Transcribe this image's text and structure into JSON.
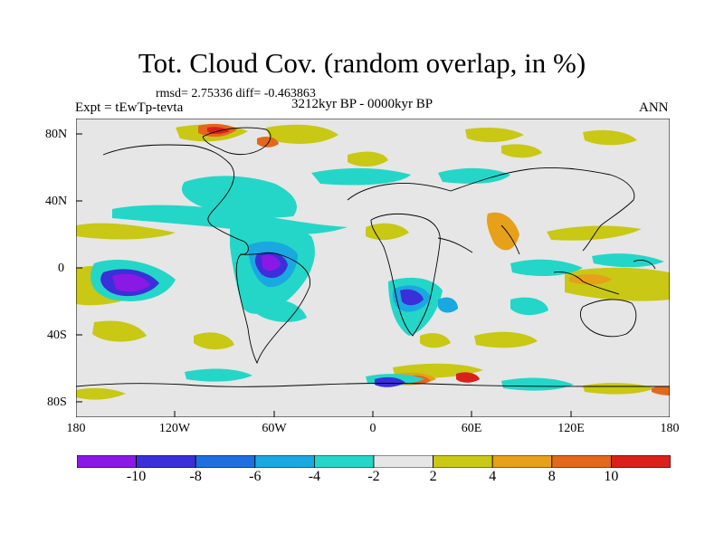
{
  "title": "Tot. Cloud Cov. (random overlap, in %)",
  "stats": "rmsd= 2.75336 diff= -0.463863",
  "experiment": "Expt = tEwTp-tevta",
  "period": "3212kyr BP - 0000kyr BP",
  "season": "ANN",
  "y_axis": {
    "ticks": [
      "80N",
      "40N",
      "0",
      "40S",
      "80S"
    ]
  },
  "x_axis": {
    "ticks": [
      "180",
      "120W",
      "60W",
      "0",
      "60E",
      "120E",
      "180"
    ]
  },
  "colorbar": {
    "labels": [
      "-10",
      "-8",
      "-6",
      "-4",
      "-2",
      "2",
      "4",
      "8",
      "10"
    ],
    "colors": [
      "#8a19e6",
      "#3a2fd8",
      "#1f6fe0",
      "#19a8e0",
      "#24d6c8",
      "#e6e6e6",
      "#c8c815",
      "#e6a019",
      "#e2681b",
      "#d9201b"
    ]
  },
  "map_colors": {
    "background": "#e6e6e6",
    "coast": "#000000"
  }
}
